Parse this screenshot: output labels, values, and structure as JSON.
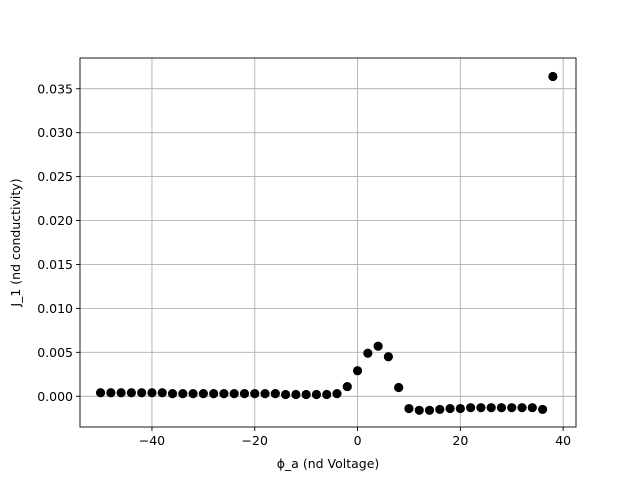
{
  "chart_data": {
    "type": "scatter",
    "title": "",
    "xlabel": "ϕ_a (nd Voltage)",
    "ylabel": "J_1 (nd conductivity)",
    "xlim": [
      -54,
      42.5
    ],
    "ylim": [
      -0.0035,
      0.0385
    ],
    "xticks": [
      -40,
      -20,
      0,
      20,
      40
    ],
    "xtick_labels": [
      "−40",
      "−20",
      "0",
      "20",
      "40"
    ],
    "yticks": [
      0.0,
      0.005,
      0.01,
      0.015,
      0.02,
      0.025,
      0.03,
      0.035
    ],
    "ytick_labels": [
      "0.000",
      "0.005",
      "0.010",
      "0.015",
      "0.020",
      "0.025",
      "0.030",
      "0.035"
    ],
    "grid": true,
    "marker_color": "#000000",
    "series": [
      {
        "x": [
          -50,
          -48,
          -46,
          -44,
          -42,
          -40,
          -38,
          -36,
          -34,
          -32,
          -30,
          -28,
          -26,
          -24,
          -22,
          -20,
          -18,
          -16,
          -14,
          -12,
          -10,
          -8,
          -6,
          -4,
          -2,
          0,
          2,
          4,
          6,
          8,
          10,
          12,
          14,
          16,
          18,
          20,
          22,
          24,
          26,
          28,
          30,
          32,
          34,
          36,
          38
        ],
        "y": [
          0.0004,
          0.0004,
          0.0004,
          0.0004,
          0.0004,
          0.0004,
          0.0004,
          0.0003,
          0.0003,
          0.0003,
          0.0003,
          0.0003,
          0.0003,
          0.0003,
          0.0003,
          0.0003,
          0.0003,
          0.0003,
          0.0002,
          0.0002,
          0.0002,
          0.0002,
          0.0002,
          0.0003,
          0.0011,
          0.0029,
          0.0049,
          0.0057,
          0.0045,
          0.001,
          -0.0014,
          -0.0016,
          -0.0016,
          -0.0015,
          -0.0014,
          -0.0014,
          -0.0013,
          -0.0013,
          -0.0013,
          -0.0013,
          -0.0013,
          -0.0013,
          -0.0013,
          -0.0015,
          0.0364
        ]
      }
    ]
  }
}
